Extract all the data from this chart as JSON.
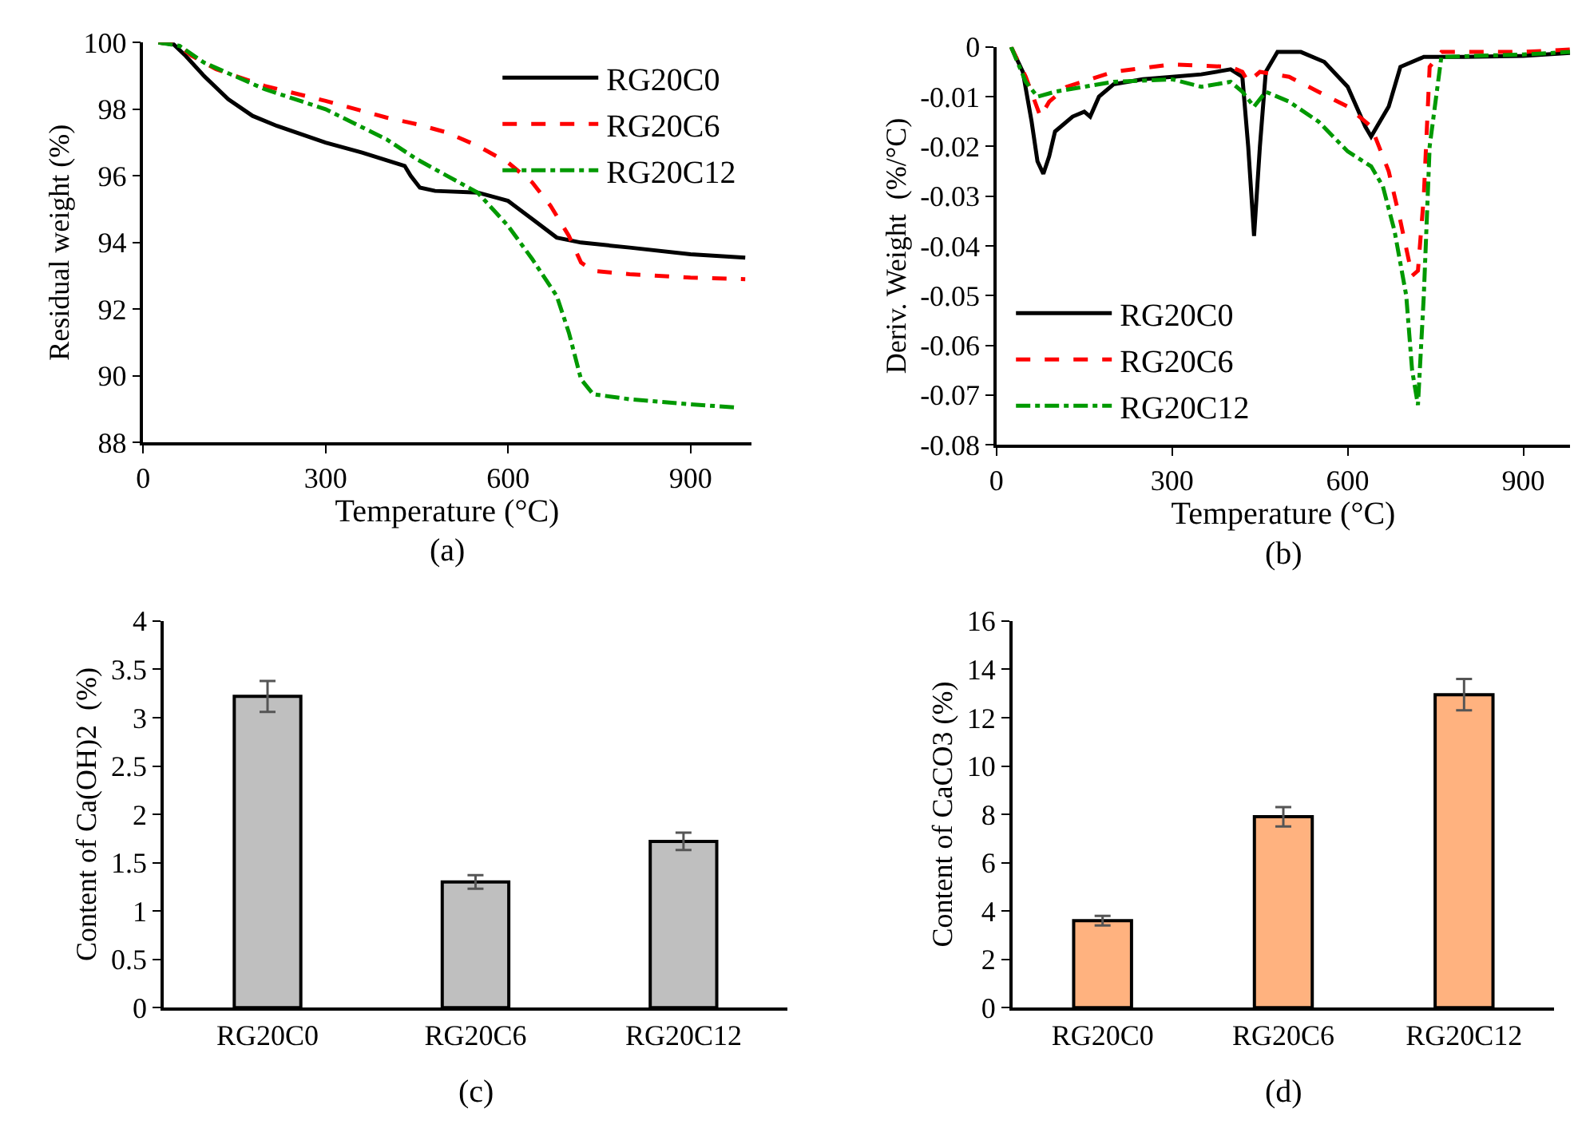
{
  "chart_data": [
    {
      "type": "line",
      "xlabel": "Temperature (°C)",
      "ylabel": "Residual weight (%)",
      "xlim": [
        0,
        1000
      ],
      "xticks": [
        0,
        300,
        600,
        900
      ],
      "ylim": [
        88,
        100
      ],
      "yticks": [
        88,
        90,
        92,
        94,
        96,
        98,
        100
      ],
      "legend": "top right",
      "marker": "none",
      "annotations": [
        "(a)"
      ],
      "series": [
        {
          "name": "RG20C0",
          "color": "#000000",
          "line_style": "solid",
          "x": [
            25,
            50,
            70,
            100,
            140,
            180,
            220,
            300,
            360,
            430,
            440,
            455,
            480,
            550,
            600,
            640,
            680,
            720,
            800,
            900,
            990
          ],
          "values": [
            100,
            99.95,
            99.6,
            99,
            98.3,
            97.8,
            97.5,
            97,
            96.7,
            96.3,
            96.0,
            95.65,
            95.55,
            95.5,
            95.25,
            94.7,
            94.15,
            94.0,
            93.85,
            93.65,
            93.55
          ]
        },
        {
          "name": "RG20C6",
          "color": "#ff0000",
          "line_style": "dashed",
          "x": [
            25,
            55,
            80,
            120,
            200,
            300,
            400,
            450,
            500,
            550,
            600,
            640,
            670,
            700,
            720,
            740,
            800,
            900,
            990
          ],
          "values": [
            100,
            99.95,
            99.6,
            99.2,
            98.7,
            98.25,
            97.75,
            97.55,
            97.3,
            96.9,
            96.4,
            95.8,
            95.1,
            94.2,
            93.4,
            93.15,
            93.05,
            92.95,
            92.9
          ]
        },
        {
          "name": "RG20C12",
          "color": "#009900",
          "line_style": "dashdot",
          "x": [
            25,
            60,
            100,
            150,
            200,
            300,
            400,
            450,
            500,
            550,
            600,
            640,
            680,
            700,
            720,
            740,
            800,
            900,
            975
          ],
          "values": [
            100,
            99.9,
            99.4,
            99,
            98.6,
            98,
            97.1,
            96.5,
            96,
            95.5,
            94.5,
            93.5,
            92.4,
            91.3,
            89.9,
            89.45,
            89.3,
            89.15,
            89.05
          ]
        }
      ]
    },
    {
      "type": "line",
      "xlabel": "Temperature (°C)",
      "ylabel": "Deriv. Weight  (%/°C)",
      "xlim": [
        0,
        980
      ],
      "xticks": [
        0,
        300,
        600,
        900
      ],
      "ylim": [
        -0.08,
        0
      ],
      "yticks": [
        -0.08,
        -0.07,
        -0.06,
        -0.05,
        -0.04,
        -0.03,
        -0.02,
        -0.01,
        0
      ],
      "legend": "bottom left",
      "marker": "none",
      "annotations": [
        "(b)"
      ],
      "series": [
        {
          "name": "RG20C0",
          "color": "#000000",
          "line_style": "solid",
          "x": [
            25,
            45,
            60,
            70,
            80,
            90,
            100,
            130,
            150,
            160,
            175,
            200,
            250,
            300,
            350,
            400,
            420,
            430,
            440,
            450,
            460,
            480,
            520,
            560,
            600,
            630,
            640,
            655,
            670,
            690,
            730,
            800,
            900,
            980
          ],
          "values": [
            0,
            -0.005,
            -0.015,
            -0.023,
            -0.0255,
            -0.022,
            -0.017,
            -0.014,
            -0.013,
            -0.014,
            -0.01,
            -0.0075,
            -0.0065,
            -0.006,
            -0.0055,
            -0.0045,
            -0.006,
            -0.02,
            -0.038,
            -0.02,
            -0.005,
            -0.001,
            -0.001,
            -0.003,
            -0.008,
            -0.016,
            -0.018,
            -0.015,
            -0.012,
            -0.004,
            -0.002,
            -0.002,
            -0.0018,
            -0.0012
          ]
        },
        {
          "name": "RG20C6",
          "color": "#ff0000",
          "line_style": "dashed",
          "x": [
            25,
            50,
            75,
            90,
            120,
            200,
            300,
            400,
            420,
            430,
            450,
            500,
            550,
            600,
            640,
            670,
            690,
            710,
            720,
            730,
            740,
            760,
            900,
            980
          ],
          "values": [
            0,
            -0.006,
            -0.014,
            -0.011,
            -0.008,
            -0.005,
            -0.0035,
            -0.004,
            -0.005,
            -0.007,
            -0.005,
            -0.006,
            -0.009,
            -0.012,
            -0.016,
            -0.025,
            -0.035,
            -0.046,
            -0.045,
            -0.03,
            -0.004,
            -0.001,
            -0.001,
            -0.0005
          ]
        },
        {
          "name": "RG20C12",
          "color": "#009900",
          "line_style": "dashdot",
          "x": [
            25,
            50,
            70,
            100,
            150,
            200,
            300,
            350,
            400,
            420,
            440,
            460,
            500,
            550,
            600,
            640,
            660,
            680,
            700,
            710,
            720,
            730,
            740,
            760,
            900,
            980
          ],
          "values": [
            0,
            -0.007,
            -0.01,
            -0.009,
            -0.008,
            -0.007,
            -0.0065,
            -0.008,
            -0.007,
            -0.009,
            -0.012,
            -0.009,
            -0.011,
            -0.015,
            -0.021,
            -0.024,
            -0.028,
            -0.037,
            -0.05,
            -0.065,
            -0.072,
            -0.05,
            -0.02,
            -0.002,
            -0.0015,
            -0.001
          ]
        }
      ]
    },
    {
      "type": "bar",
      "ylabel": "Content of Ca(OH)2  (%)",
      "categories": [
        "RG20C0",
        "RG20C6",
        "RG20C12"
      ],
      "values": [
        3.22,
        1.3,
        1.72
      ],
      "errors": [
        0.16,
        0.07,
        0.09
      ],
      "color": "#bfbfbf",
      "ylim": [
        0,
        4
      ],
      "yticks": [
        0,
        0.5,
        1,
        1.5,
        2,
        2.5,
        3,
        3.5,
        4
      ],
      "annotations": [
        "(c)"
      ]
    },
    {
      "type": "bar",
      "ylabel": "Content of CaCO3 (%)",
      "categories": [
        "RG20C0",
        "RG20C6",
        "RG20C12"
      ],
      "values": [
        3.6,
        7.9,
        12.95
      ],
      "errors": [
        0.2,
        0.4,
        0.65
      ],
      "color": "#ffb27f",
      "ylim": [
        0,
        16
      ],
      "yticks": [
        0,
        2,
        4,
        6,
        8,
        10,
        12,
        14,
        16
      ],
      "annotations": [
        "(d)"
      ]
    }
  ]
}
